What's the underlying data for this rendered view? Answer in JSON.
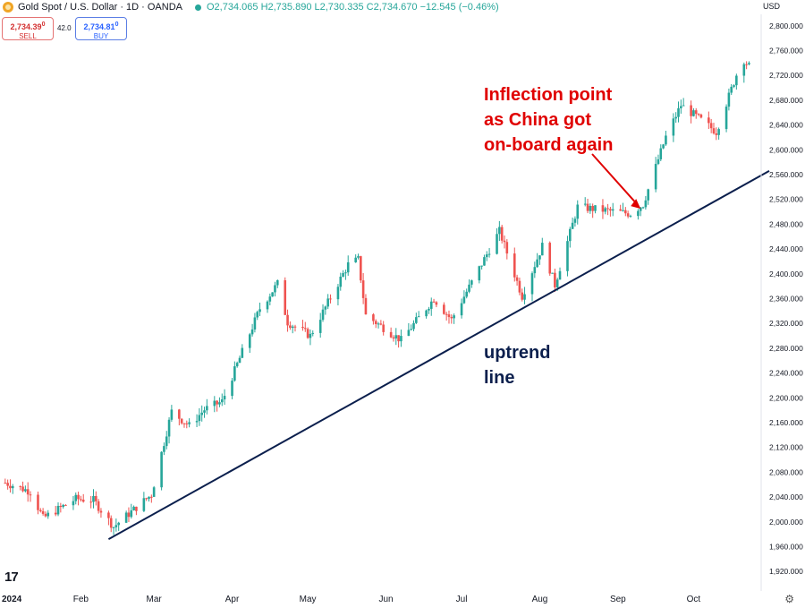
{
  "header": {
    "symbol": "Gold Spot / U.S. Dollar · 1D · OANDA",
    "open": "O2,734.065",
    "high": "H2,735.890",
    "low": "L2,730.335",
    "close": "C2,734.670",
    "change": "−12.545 (−0.46%)",
    "currency": "USD",
    "sell_price": "2,734.39",
    "sell_sup": "0",
    "sell_label": "SELL",
    "buy_price": "2,734.81",
    "buy_sup": "0",
    "buy_label": "BUY",
    "spread": "42.0",
    "tv_logo": "17",
    "settings_icon": "gear-icon"
  },
  "colors": {
    "up": "#26a69a",
    "down": "#ef5350",
    "trendline": "#0b1f4d",
    "annotation_red": "#e00000",
    "annotation_navy": "#0b1f4d"
  },
  "chart_data": {
    "type": "candlestick",
    "title": "",
    "ylim": [
      1900,
      2820
    ],
    "y_ticks": [
      "2,800.000",
      "2,760.000",
      "2,720.000",
      "2,680.000",
      "2,640.000",
      "2,600.000",
      "2,560.000",
      "2,520.000",
      "2,480.000",
      "2,440.000",
      "2,400.000",
      "2,360.000",
      "2,320.000",
      "2,280.000",
      "2,240.000",
      "2,200.000",
      "2,160.000",
      "2,120.000",
      "2,080.000",
      "2,040.000",
      "2,000.000",
      "1,960.000",
      "1,920.000"
    ],
    "x_ticks": [
      "2024",
      "Feb",
      "Mar",
      "Apr",
      "May",
      "Jun",
      "Jul",
      "Aug",
      "Sep",
      "Oct"
    ],
    "x_tick_dates": [
      "2024-01-01",
      "2024-02-01",
      "2024-03-01",
      "2024-04-01",
      "2024-05-01",
      "2024-06-01",
      "2024-07-01",
      "2024-08-01",
      "2024-09-01",
      "2024-10-01"
    ],
    "date_range": [
      "2024-01-01",
      "2024-10-31"
    ],
    "candle_dates_start": "2024-01-02",
    "candle_dates_end": "2024-10-23",
    "close_keypoints": [
      [
        "2024-01-02",
        2063
      ],
      [
        "2024-01-12",
        2049
      ],
      [
        "2024-01-17",
        2006
      ],
      [
        "2024-01-30",
        2037
      ],
      [
        "2024-02-06",
        2035
      ],
      [
        "2024-02-14",
        1992
      ],
      [
        "2024-02-29",
        2044
      ],
      [
        "2024-03-08",
        2178
      ],
      [
        "2024-03-15",
        2155
      ],
      [
        "2024-03-21",
        2181
      ],
      [
        "2024-03-28",
        2194
      ],
      [
        "2024-04-12",
        2344
      ],
      [
        "2024-04-19",
        2384
      ],
      [
        "2024-04-23",
        2322
      ],
      [
        "2024-05-02",
        2300
      ],
      [
        "2024-05-17",
        2415
      ],
      [
        "2024-05-21",
        2423
      ],
      [
        "2024-05-24",
        2333
      ],
      [
        "2024-06-07",
        2293
      ],
      [
        "2024-06-20",
        2360
      ],
      [
        "2024-06-27",
        2326
      ],
      [
        "2024-07-16",
        2469
      ],
      [
        "2024-07-25",
        2364
      ],
      [
        "2024-08-02",
        2445
      ],
      [
        "2024-08-07",
        2382
      ],
      [
        "2024-08-16",
        2508
      ],
      [
        "2024-09-06",
        2497
      ],
      [
        "2024-09-11",
        2512
      ],
      [
        "2024-09-20",
        2621
      ],
      [
        "2024-09-26",
        2672
      ],
      [
        "2024-10-03",
        2651
      ],
      [
        "2024-10-10",
        2629
      ],
      [
        "2024-10-18",
        2721
      ],
      [
        "2024-10-21",
        2745
      ],
      [
        "2024-10-23",
        2735
      ]
    ],
    "trendline": {
      "start": [
        "2024-02-12",
        1972
      ],
      "end": [
        "2024-10-31",
        2566
      ]
    },
    "annotations": [
      {
        "text": "Inflection point as China got on-board again",
        "lines": [
          "Inflection point",
          "as China got",
          "on-board again"
        ],
        "color": "red",
        "arrow_to": [
          "2024-09-10",
          2505
        ]
      },
      {
        "text": "uptrend line",
        "lines": [
          "uptrend",
          "line"
        ],
        "color": "navy"
      }
    ]
  }
}
